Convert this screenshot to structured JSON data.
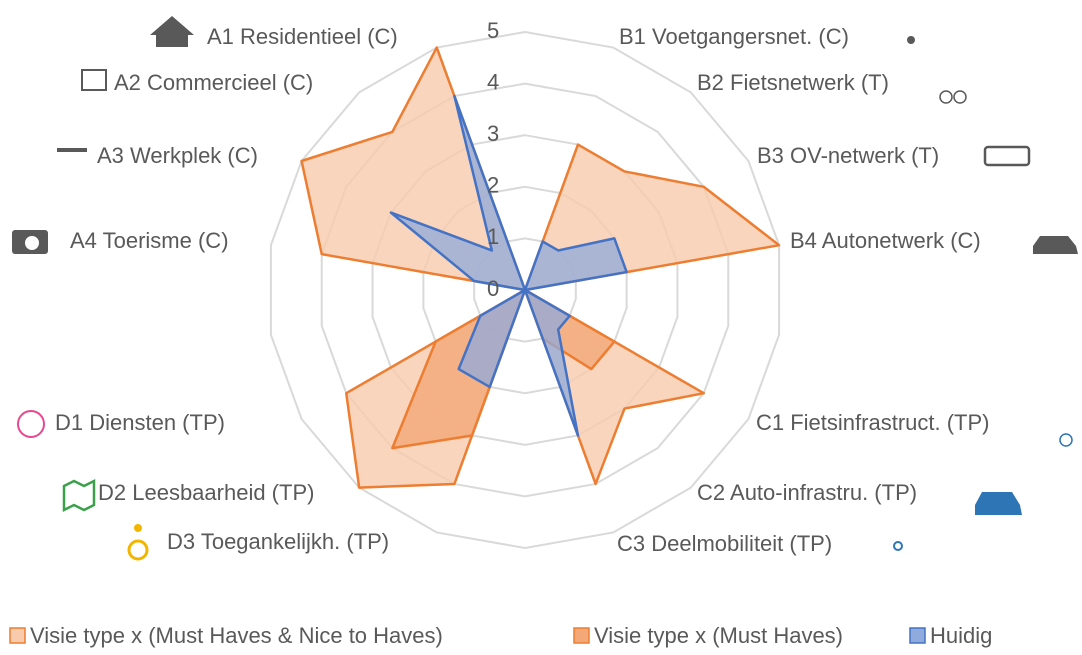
{
  "chart_data": {
    "type": "radar",
    "categories": [
      null,
      "B1 Voetgangersnet. (C)",
      "B2 Fietsnetwerk (T)",
      "B3 OV-netwerk (T)",
      "B4 Autonetwerk (C)",
      null,
      "C1 Fietsinfrastruct. (TP)",
      "C2 Auto-infrastru. (TP)",
      "C3 Deelmobiliteit (TP)",
      null,
      "D3 Toegankelijkh. (TP)",
      "D2 Leesbaarheid (TP)",
      "D1 Diensten (TP)",
      null,
      "A4 Toerisme (C)",
      "A3 Werkplek (C)",
      "A2 Commercieel (C)",
      "A1 Residentieel (C)"
    ],
    "series": [
      {
        "name": "Visie type x (Must Haves & Nice to Haves)",
        "color": "#ed7d31",
        "fill": "#f8cbad",
        "values": [
          0,
          3,
          3,
          4,
          5,
          0,
          4,
          3,
          4,
          0,
          4,
          5,
          4,
          0,
          4,
          5,
          4,
          5
        ]
      },
      {
        "name": "Visie type x (Must Haves)",
        "color": "#ed7d31",
        "fill": "#f4a878",
        "values": [
          0,
          0,
          0,
          0,
          0,
          0,
          2,
          2,
          1,
          0,
          3,
          4,
          2,
          0,
          0,
          0,
          0,
          0
        ]
      },
      {
        "name": "Huidig",
        "color": "#4472c4",
        "fill": "#8faadc",
        "values": [
          0,
          1,
          1,
          2,
          2,
          0,
          1,
          1,
          3,
          0,
          2,
          2,
          1,
          0,
          1,
          3,
          1,
          4
        ]
      }
    ],
    "ylim": [
      0,
      5
    ],
    "yticks": [
      0,
      1,
      2,
      3,
      4,
      5
    ],
    "grid": true,
    "legend": "bottom"
  }
}
